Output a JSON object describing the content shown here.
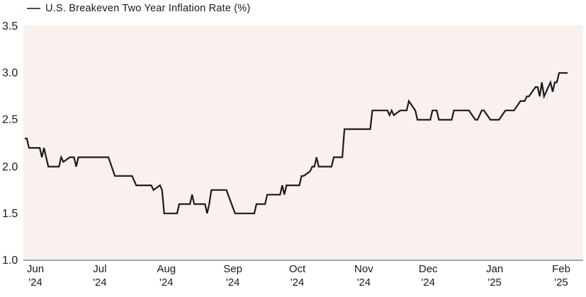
{
  "chart_data": {
    "type": "line",
    "legend_label": "U.S. Breakeven Two Year Inflation Rate (%)",
    "legend_position": "top-left",
    "grid": false,
    "colors": {
      "line": "#1a1a1f",
      "legend_marker": "#33527a",
      "plot_background": "#faf1ef",
      "axis_line": "#a3a3a3",
      "text": "#1a1a1a"
    },
    "y_axis": {
      "min": 1.0,
      "max": 3.5,
      "ticks": [
        3.5,
        3.0,
        2.5,
        2.0,
        1.5,
        1.0
      ],
      "tick_labels": [
        "3.5",
        "3.0",
        "2.5",
        "2.0",
        "1.5",
        "1.0"
      ]
    },
    "x_axis": {
      "ticks": [
        {
          "date": "2024-06-01",
          "month": "Jun",
          "year": "'24"
        },
        {
          "date": "2024-07-01",
          "month": "Jul",
          "year": "'24"
        },
        {
          "date": "2024-08-01",
          "month": "Aug",
          "year": "'24"
        },
        {
          "date": "2024-09-01",
          "month": "Sep",
          "year": "'24"
        },
        {
          "date": "2024-10-01",
          "month": "Oct",
          "year": "'24"
        },
        {
          "date": "2024-11-01",
          "month": "Nov",
          "year": "'24"
        },
        {
          "date": "2024-12-01",
          "month": "Dec",
          "year": "'24"
        },
        {
          "date": "2025-01-01",
          "month": "Jan",
          "year": "'25"
        },
        {
          "date": "2025-02-01",
          "month": "Feb",
          "year": "'25"
        }
      ]
    },
    "series": [
      {
        "name": "U.S. Breakeven Two Year Inflation Rate (%)",
        "unit": "%",
        "points": [
          [
            "2024-05-27",
            2.3
          ],
          [
            "2024-05-28",
            2.3
          ],
          [
            "2024-05-29",
            2.2
          ],
          [
            "2024-06-03",
            2.2
          ],
          [
            "2024-06-04",
            2.1
          ],
          [
            "2024-06-05",
            2.2
          ],
          [
            "2024-06-06",
            2.1
          ],
          [
            "2024-06-07",
            2.0
          ],
          [
            "2024-06-12",
            2.0
          ],
          [
            "2024-06-13",
            2.1
          ],
          [
            "2024-06-14",
            2.05
          ],
          [
            "2024-06-17",
            2.1
          ],
          [
            "2024-06-19",
            2.1
          ],
          [
            "2024-06-20",
            2.0
          ],
          [
            "2024-06-21",
            2.1
          ],
          [
            "2024-07-05",
            2.1
          ],
          [
            "2024-07-08",
            1.9
          ],
          [
            "2024-07-16",
            1.9
          ],
          [
            "2024-07-17",
            1.85
          ],
          [
            "2024-07-18",
            1.8
          ],
          [
            "2024-07-25",
            1.8
          ],
          [
            "2024-07-26",
            1.75
          ],
          [
            "2024-07-29",
            1.8
          ],
          [
            "2024-07-30",
            1.75
          ],
          [
            "2024-07-31",
            1.5
          ],
          [
            "2024-08-06",
            1.5
          ],
          [
            "2024-08-07",
            1.6
          ],
          [
            "2024-08-12",
            1.6
          ],
          [
            "2024-08-13",
            1.7
          ],
          [
            "2024-08-14",
            1.6
          ],
          [
            "2024-08-19",
            1.6
          ],
          [
            "2024-08-20",
            1.5
          ],
          [
            "2024-08-21",
            1.6
          ],
          [
            "2024-08-22",
            1.75
          ],
          [
            "2024-08-29",
            1.75
          ],
          [
            "2024-09-02",
            1.5
          ],
          [
            "2024-09-11",
            1.5
          ],
          [
            "2024-09-12",
            1.6
          ],
          [
            "2024-09-16",
            1.6
          ],
          [
            "2024-09-17",
            1.7
          ],
          [
            "2024-09-23",
            1.7
          ],
          [
            "2024-09-24",
            1.8
          ],
          [
            "2024-09-25",
            1.7
          ],
          [
            "2024-09-26",
            1.8
          ],
          [
            "2024-10-02",
            1.8
          ],
          [
            "2024-10-03",
            1.9
          ],
          [
            "2024-10-04",
            1.9
          ],
          [
            "2024-10-07",
            1.95
          ],
          [
            "2024-10-08",
            2.0
          ],
          [
            "2024-10-09",
            2.0
          ],
          [
            "2024-10-10",
            2.1
          ],
          [
            "2024-10-11",
            2.0
          ],
          [
            "2024-10-17",
            2.0
          ],
          [
            "2024-10-18",
            2.1
          ],
          [
            "2024-10-22",
            2.1
          ],
          [
            "2024-10-23",
            2.4
          ],
          [
            "2024-11-04",
            2.4
          ],
          [
            "2024-11-05",
            2.6
          ],
          [
            "2024-11-12",
            2.6
          ],
          [
            "2024-11-13",
            2.55
          ],
          [
            "2024-11-14",
            2.6
          ],
          [
            "2024-11-15",
            2.55
          ],
          [
            "2024-11-18",
            2.6
          ],
          [
            "2024-11-21",
            2.6
          ],
          [
            "2024-11-22",
            2.7
          ],
          [
            "2024-11-25",
            2.6
          ],
          [
            "2024-11-26",
            2.5
          ],
          [
            "2024-12-02",
            2.5
          ],
          [
            "2024-12-03",
            2.6
          ],
          [
            "2024-12-05",
            2.6
          ],
          [
            "2024-12-06",
            2.5
          ],
          [
            "2024-12-12",
            2.5
          ],
          [
            "2024-12-13",
            2.6
          ],
          [
            "2024-12-20",
            2.6
          ],
          [
            "2024-12-23",
            2.5
          ],
          [
            "2024-12-24",
            2.5
          ],
          [
            "2024-12-26",
            2.6
          ],
          [
            "2024-12-27",
            2.6
          ],
          [
            "2024-12-30",
            2.5
          ],
          [
            "2025-01-03",
            2.5
          ],
          [
            "2025-01-06",
            2.6
          ],
          [
            "2025-01-10",
            2.6
          ],
          [
            "2025-01-13",
            2.7
          ],
          [
            "2025-01-15",
            2.7
          ],
          [
            "2025-01-16",
            2.75
          ],
          [
            "2025-01-17",
            2.75
          ],
          [
            "2025-01-20",
            2.85
          ],
          [
            "2025-01-21",
            2.85
          ],
          [
            "2025-01-22",
            2.75
          ],
          [
            "2025-01-23",
            2.9
          ],
          [
            "2025-01-24",
            2.75
          ],
          [
            "2025-01-27",
            2.9
          ],
          [
            "2025-01-28",
            2.8
          ],
          [
            "2025-01-29",
            2.9
          ],
          [
            "2025-01-30",
            2.9
          ],
          [
            "2025-01-31",
            3.0
          ],
          [
            "2025-02-04",
            3.0
          ]
        ]
      }
    ]
  }
}
